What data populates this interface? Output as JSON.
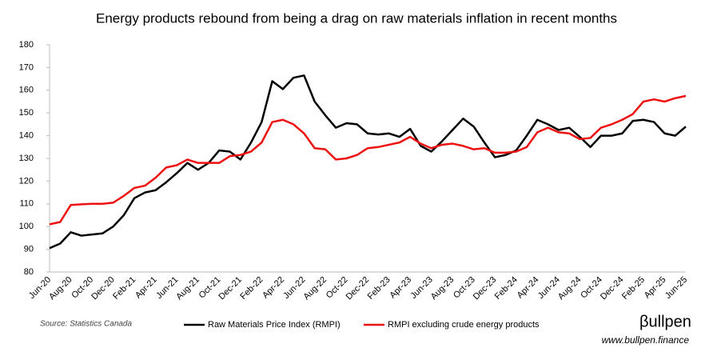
{
  "chart_data": {
    "type": "line",
    "title": "Energy products rebound from being a drag on raw materials inflation in recent months",
    "source": "Source: Statistics Canada",
    "logo": "βullpen",
    "website": "www.bullpen.finance",
    "categories": [
      "Jun-20",
      null,
      "Aug-20",
      null,
      "Oct-20",
      null,
      "Dec-20",
      null,
      "Feb-21",
      null,
      "Apr-21",
      null,
      "Jun-21",
      null,
      "Aug-21",
      null,
      "Oct-21",
      null,
      "Dec-21",
      null,
      "Feb-22",
      null,
      "Apr-22",
      null,
      "Jun-22",
      null,
      "Aug-22",
      null,
      "Oct-22",
      null,
      "Dec-22",
      null,
      "Feb-23",
      null,
      "Apr-23",
      null,
      "Jun-23",
      null,
      "Aug-23",
      null,
      "Oct-23",
      null,
      "Dec-23",
      null,
      "Feb-24",
      null,
      "Apr-24",
      null,
      "Jun-24",
      null,
      "Aug-24",
      null,
      "Oct-24",
      null,
      "Dec-24",
      null,
      "Feb-25",
      null,
      "Apr-25",
      null,
      "Jun-25"
    ],
    "series": [
      {
        "name": "Raw Materials Price Index (RMPI)",
        "color": "#000000",
        "values": [
          90.5,
          92.5,
          97.5,
          96,
          96.5,
          97,
          100,
          105,
          112.5,
          115,
          116,
          119.5,
          123.5,
          128,
          125,
          128,
          133.5,
          133,
          129.5,
          137,
          146,
          164,
          160.5,
          165.5,
          166.5,
          155,
          149,
          143.5,
          145.5,
          145,
          141,
          140.5,
          141,
          139.5,
          143,
          135.5,
          133,
          137.5,
          142.5,
          147.5,
          144,
          137,
          130.5,
          131.5,
          133.5,
          140,
          147,
          145,
          142.5,
          143.5,
          139.5,
          135,
          140,
          140,
          141,
          146.5,
          147,
          146,
          141,
          140,
          144
        ]
      },
      {
        "name": "RMPI excluding crude energy products",
        "color": "#ee1111",
        "values": [
          101,
          102,
          109.5,
          109.8,
          110,
          110,
          110.5,
          113.5,
          117,
          118,
          121.5,
          126,
          127,
          129.5,
          128,
          128,
          128,
          131,
          131.5,
          133,
          137,
          146,
          147,
          145,
          141,
          134.5,
          134,
          129.5,
          130,
          131.5,
          134.5,
          135,
          136,
          137,
          139.5,
          136.5,
          134.5,
          136,
          136.5,
          135.5,
          134,
          134.5,
          132.5,
          132.5,
          133,
          135,
          141.5,
          143.5,
          141.5,
          141,
          138.5,
          139,
          143.5,
          145,
          147,
          149.5,
          155,
          156,
          155,
          156.5,
          157.5
        ]
      }
    ],
    "ylim": [
      80,
      180
    ],
    "yticks": [
      80,
      90,
      100,
      110,
      120,
      130,
      140,
      150,
      160,
      170,
      180
    ],
    "grid": false
  }
}
